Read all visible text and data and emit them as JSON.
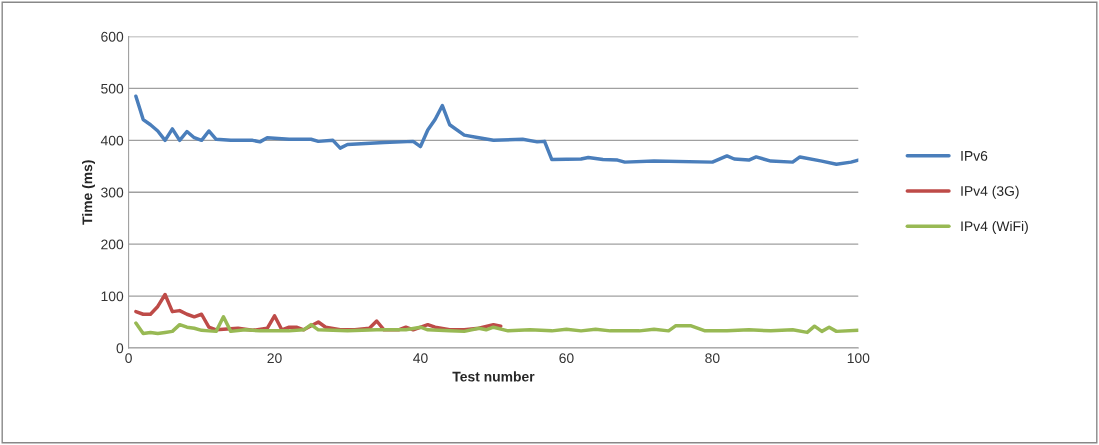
{
  "chart_data": {
    "type": "line",
    "xlabel": "Test number",
    "ylabel": "Time (ms)",
    "xlim": [
      0,
      100
    ],
    "xticks": [
      0,
      20,
      40,
      60,
      80,
      100
    ],
    "ylim": [
      0,
      600
    ],
    "yticks": [
      0,
      100,
      200,
      300,
      400,
      500,
      600
    ],
    "grid": "y",
    "legend": "right",
    "marker": "none",
    "line_style": "solid",
    "series": [
      {
        "name": "IPv6",
        "color": "#4a7ebb",
        "x": [
          1,
          2,
          3,
          4,
          5,
          6,
          7,
          8,
          9,
          10,
          11,
          12,
          14,
          17,
          18,
          19,
          22,
          25,
          26,
          28,
          29,
          30,
          35,
          39,
          40,
          41,
          42,
          43,
          44,
          46,
          48,
          50,
          54,
          56,
          57,
          58,
          62,
          63,
          65,
          67,
          68,
          72,
          80,
          82,
          83,
          85,
          86,
          88,
          91,
          92,
          95,
          97,
          99,
          100
        ],
        "values": [
          485,
          440,
          430,
          418,
          400,
          422,
          400,
          417,
          405,
          400,
          418,
          402,
          400,
          400,
          397,
          405,
          402,
          402,
          398,
          400,
          385,
          392,
          396,
          398,
          388,
          420,
          440,
          467,
          430,
          410,
          405,
          400,
          402,
          397,
          398,
          363,
          364,
          367,
          363,
          362,
          358,
          360,
          358,
          370,
          364,
          362,
          368,
          360,
          358,
          368,
          360,
          354,
          358,
          362
        ]
      },
      {
        "name": "IPv4 (3G)",
        "color": "#be4b48",
        "x": [
          1,
          2,
          3,
          4,
          5,
          6,
          7,
          8,
          9,
          10,
          11,
          12,
          13,
          15,
          17,
          19,
          20,
          21,
          22,
          23,
          24,
          26,
          27,
          29,
          31,
          33,
          34,
          35,
          37,
          38,
          39,
          41,
          42,
          44,
          46,
          48,
          50,
          51
        ],
        "values": [
          70,
          65,
          65,
          80,
          103,
          70,
          72,
          65,
          60,
          65,
          40,
          35,
          36,
          38,
          34,
          38,
          62,
          35,
          40,
          40,
          35,
          50,
          40,
          35,
          35,
          38,
          52,
          35,
          35,
          40,
          35,
          45,
          40,
          35,
          35,
          38,
          45,
          42
        ]
      },
      {
        "name": "IPv4 (WiFi)",
        "color": "#98b954",
        "x": [
          1,
          2,
          3,
          4,
          5,
          6,
          7,
          8,
          9,
          10,
          11,
          12,
          13,
          14,
          16,
          18,
          20,
          22,
          24,
          25,
          26,
          30,
          34,
          36,
          38,
          40,
          41,
          44,
          46,
          48,
          49,
          50,
          52,
          55,
          58,
          60,
          62,
          64,
          66,
          70,
          72,
          74,
          75,
          77,
          79,
          82,
          85,
          88,
          91,
          93,
          94,
          95,
          96,
          97,
          100
        ],
        "values": [
          48,
          28,
          30,
          28,
          30,
          32,
          45,
          40,
          38,
          34,
          33,
          32,
          60,
          32,
          35,
          33,
          33,
          33,
          35,
          45,
          35,
          33,
          35,
          35,
          35,
          40,
          35,
          33,
          32,
          38,
          35,
          40,
          33,
          35,
          33,
          36,
          33,
          36,
          33,
          33,
          36,
          33,
          43,
          43,
          33,
          33,
          35,
          33,
          35,
          30,
          42,
          32,
          40,
          32,
          34
        ]
      }
    ]
  }
}
